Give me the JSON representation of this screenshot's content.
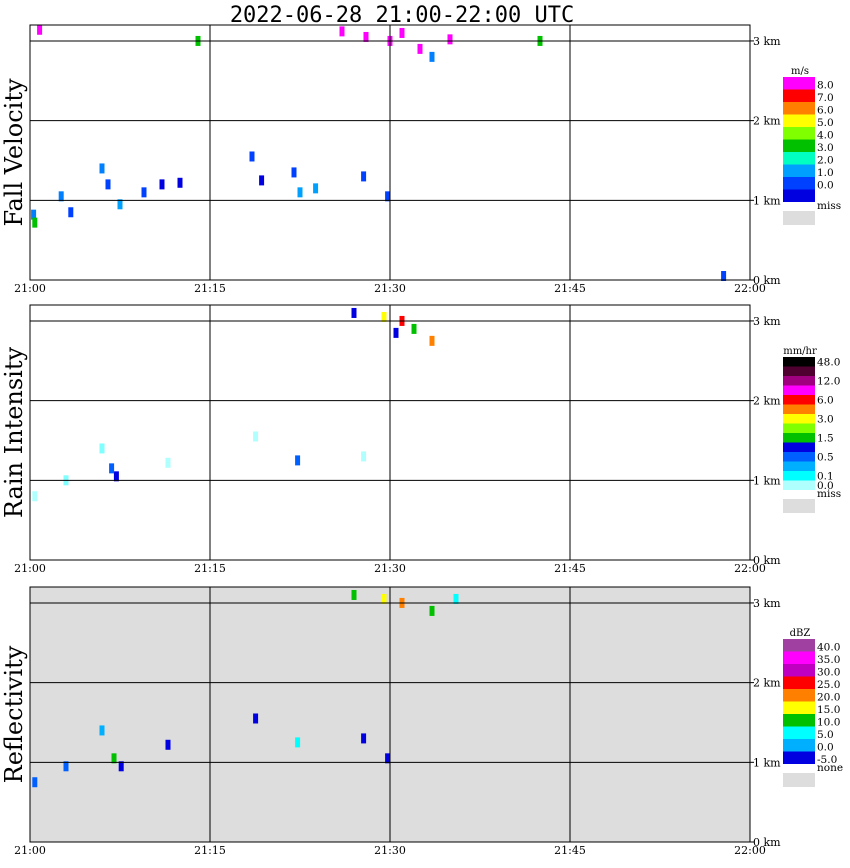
{
  "chart_data": {
    "type": "heatmap",
    "title": "2022-06-28  21:00-22:00 UTC",
    "x_ticks": [
      "21:00",
      "21:15",
      "21:30",
      "21:45",
      "22:00"
    ],
    "y_ticks": [
      "0 km",
      "1 km",
      "2 km",
      "3 km"
    ],
    "xlim_minutes": [
      0,
      60
    ],
    "ylim_km": [
      0,
      3.2
    ],
    "grid": true,
    "legend_position": "right",
    "panels": [
      {
        "ylabel": "Fall Velocity",
        "unit": "m/s",
        "background": "#ffffff",
        "legend": [
          {
            "label": "8.0",
            "color": "#ff00ff"
          },
          {
            "label": "7.0",
            "color": "#ff0000"
          },
          {
            "label": "6.0",
            "color": "#ff8000"
          },
          {
            "label": "5.0",
            "color": "#ffff00"
          },
          {
            "label": "4.0",
            "color": "#80ff00"
          },
          {
            "label": "3.0",
            "color": "#00c000"
          },
          {
            "label": "2.0",
            "color": "#00ffc0"
          },
          {
            "label": "1.0",
            "color": "#00a0ff"
          },
          {
            "label": "0.0",
            "color": "#0040ff"
          },
          {
            "label": "",
            "color": "#0000e0"
          }
        ],
        "missing": {
          "label": "miss",
          "color": "#dddddd"
        },
        "echoes": [
          {
            "t": 0.3,
            "h": 0.82,
            "c": "#0080ff"
          },
          {
            "t": 0.4,
            "h": 0.72,
            "c": "#00c000"
          },
          {
            "t": 2.6,
            "h": 1.05,
            "c": "#0080ff"
          },
          {
            "t": 3.4,
            "h": 0.85,
            "c": "#0040ff"
          },
          {
            "t": 6.0,
            "h": 1.4,
            "c": "#0080ff"
          },
          {
            "t": 6.5,
            "h": 1.2,
            "c": "#0040ff"
          },
          {
            "t": 7.5,
            "h": 0.95,
            "c": "#00a0ff"
          },
          {
            "t": 9.5,
            "h": 1.1,
            "c": "#0040ff"
          },
          {
            "t": 11.0,
            "h": 1.2,
            "c": "#0000e0"
          },
          {
            "t": 12.5,
            "h": 1.22,
            "c": "#0000e0"
          },
          {
            "t": 18.5,
            "h": 1.55,
            "c": "#0040ff"
          },
          {
            "t": 19.3,
            "h": 1.25,
            "c": "#0000e0"
          },
          {
            "t": 22.0,
            "h": 1.35,
            "c": "#0040ff"
          },
          {
            "t": 22.5,
            "h": 1.1,
            "c": "#00a0ff"
          },
          {
            "t": 23.8,
            "h": 1.15,
            "c": "#00a0ff"
          },
          {
            "t": 27.8,
            "h": 1.3,
            "c": "#0040ff"
          },
          {
            "t": 29.8,
            "h": 1.05,
            "c": "#0040ff"
          },
          {
            "t": 26.0,
            "h": 3.12,
            "c": "#ff00ff"
          },
          {
            "t": 28.0,
            "h": 3.05,
            "c": "#ff00ff"
          },
          {
            "t": 30.0,
            "h": 3.0,
            "c": "#ff00ff"
          },
          {
            "t": 32.5,
            "h": 2.9,
            "c": "#ff00ff"
          },
          {
            "t": 31.0,
            "h": 3.1,
            "c": "#ff00ff"
          },
          {
            "t": 33.5,
            "h": 2.8,
            "c": "#0080ff"
          },
          {
            "t": 35.0,
            "h": 3.02,
            "c": "#ff00ff"
          },
          {
            "t": 0.8,
            "h": 3.14,
            "c": "#ff00ff"
          },
          {
            "t": 14.0,
            "h": 3.0,
            "c": "#00c000"
          },
          {
            "t": 42.5,
            "h": 3.0,
            "c": "#00c000"
          },
          {
            "t": 57.8,
            "h": 0.05,
            "c": "#0040ff"
          }
        ]
      },
      {
        "ylabel": "Rain Intensity",
        "unit": "mm/hr",
        "background": "#ffffff",
        "legend": [
          {
            "label": "48.0",
            "color": "#000000"
          },
          {
            "label": "",
            "color": "#500030"
          },
          {
            "label": "12.0",
            "color": "#a00080"
          },
          {
            "label": "",
            "color": "#ff00ff"
          },
          {
            "label": "6.0",
            "color": "#ff0000"
          },
          {
            "label": "",
            "color": "#ff8000"
          },
          {
            "label": "3.0",
            "color": "#ffff00"
          },
          {
            "label": "",
            "color": "#80ff00"
          },
          {
            "label": "1.5",
            "color": "#00c000"
          },
          {
            "label": "",
            "color": "#0000e0"
          },
          {
            "label": "0.5",
            "color": "#0060ff"
          },
          {
            "label": "",
            "color": "#00b0ff"
          },
          {
            "label": "0.1",
            "color": "#00ffff"
          },
          {
            "label": "0.0",
            "color": "#b0ffff"
          }
        ],
        "missing": {
          "label": "miss",
          "color": "#dddddd"
        },
        "echoes": [
          {
            "t": 0.4,
            "h": 0.8,
            "c": "#b0ffff"
          },
          {
            "t": 3.0,
            "h": 1.0,
            "c": "#80ffff"
          },
          {
            "t": 6.0,
            "h": 1.4,
            "c": "#80ffff"
          },
          {
            "t": 7.2,
            "h": 1.05,
            "c": "#0000e0"
          },
          {
            "t": 6.8,
            "h": 1.15,
            "c": "#0060ff"
          },
          {
            "t": 11.5,
            "h": 1.22,
            "c": "#b0ffff"
          },
          {
            "t": 18.8,
            "h": 1.55,
            "c": "#b0ffff"
          },
          {
            "t": 22.3,
            "h": 1.25,
            "c": "#0060ff"
          },
          {
            "t": 27.8,
            "h": 1.3,
            "c": "#b0ffff"
          },
          {
            "t": 27.0,
            "h": 3.1,
            "c": "#0000e0"
          },
          {
            "t": 29.5,
            "h": 3.05,
            "c": "#ffff00"
          },
          {
            "t": 31.0,
            "h": 3.0,
            "c": "#ff0000"
          },
          {
            "t": 32.0,
            "h": 2.9,
            "c": "#00c000"
          },
          {
            "t": 33.5,
            "h": 2.75,
            "c": "#ff8000"
          },
          {
            "t": 30.5,
            "h": 2.85,
            "c": "#0000e0"
          }
        ]
      },
      {
        "ylabel": "Reflectivity",
        "unit": "dBZ",
        "background": "#dddddd",
        "legend": [
          {
            "label": "40.0",
            "color": "#a040a0"
          },
          {
            "label": "35.0",
            "color": "#ff00ff"
          },
          {
            "label": "30.0",
            "color": "#c000c0"
          },
          {
            "label": "25.0",
            "color": "#ff0000"
          },
          {
            "label": "20.0",
            "color": "#ff8000"
          },
          {
            "label": "15.0",
            "color": "#ffff00"
          },
          {
            "label": "10.0",
            "color": "#00c000"
          },
          {
            "label": "5.0",
            "color": "#00ffff"
          },
          {
            "label": "0.0",
            "color": "#00b0ff"
          },
          {
            "label": "-5.0",
            "color": "#0000e0"
          }
        ],
        "missing": {
          "label": "none",
          "color": "#dddddd"
        },
        "echoes": [
          {
            "t": 0.4,
            "h": 0.75,
            "c": "#0060ff"
          },
          {
            "t": 3.0,
            "h": 0.95,
            "c": "#0060ff"
          },
          {
            "t": 6.0,
            "h": 1.4,
            "c": "#00b0ff"
          },
          {
            "t": 7.0,
            "h": 1.05,
            "c": "#00c000"
          },
          {
            "t": 7.6,
            "h": 0.95,
            "c": "#0000e0"
          },
          {
            "t": 11.5,
            "h": 1.22,
            "c": "#0000e0"
          },
          {
            "t": 18.8,
            "h": 1.55,
            "c": "#0000e0"
          },
          {
            "t": 22.3,
            "h": 1.25,
            "c": "#00ffff"
          },
          {
            "t": 27.8,
            "h": 1.3,
            "c": "#0000e0"
          },
          {
            "t": 29.8,
            "h": 1.05,
            "c": "#0000e0"
          },
          {
            "t": 27.0,
            "h": 3.1,
            "c": "#00c000"
          },
          {
            "t": 29.5,
            "h": 3.05,
            "c": "#ffff00"
          },
          {
            "t": 31.0,
            "h": 3.0,
            "c": "#ff8000"
          },
          {
            "t": 33.5,
            "h": 2.9,
            "c": "#00c000"
          },
          {
            "t": 35.5,
            "h": 3.05,
            "c": "#00ffff"
          }
        ]
      }
    ]
  }
}
